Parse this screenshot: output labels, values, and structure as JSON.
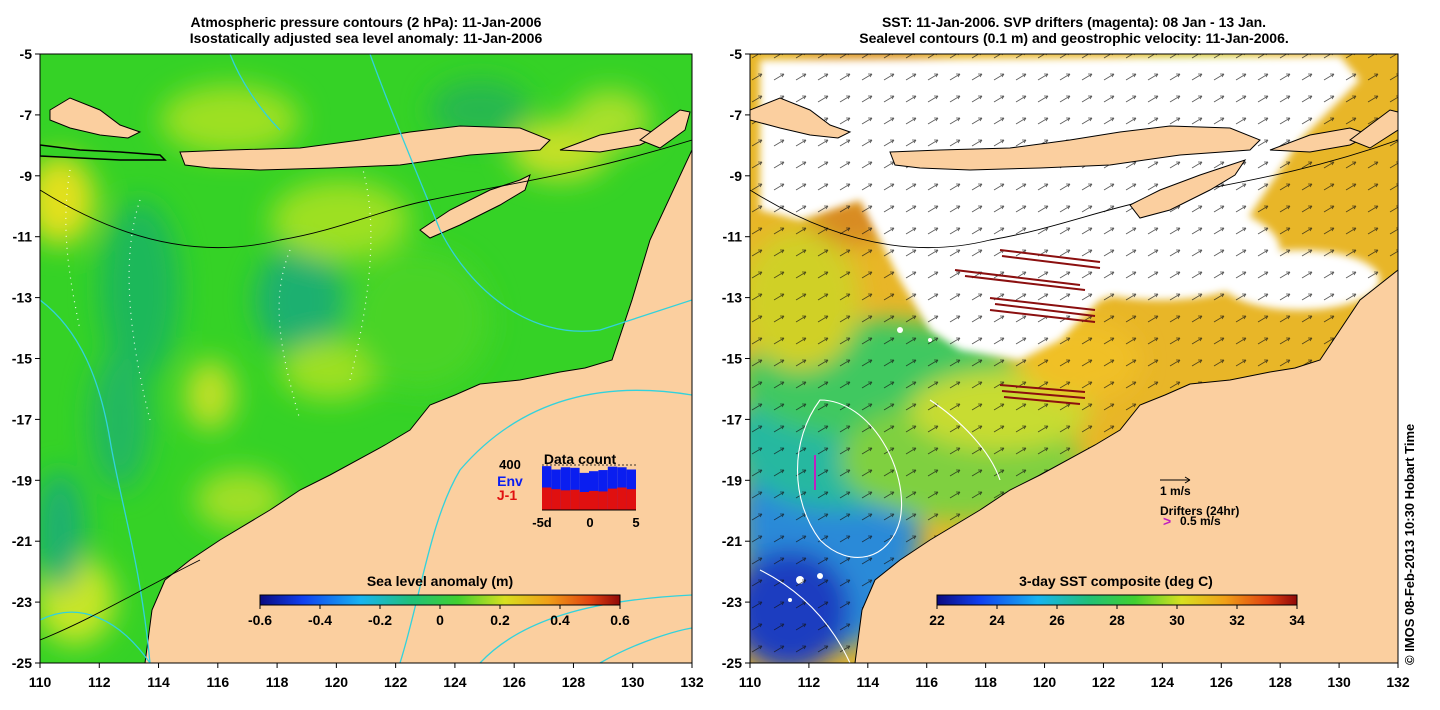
{
  "left_panel": {
    "title_line1": "Atmospheric pressure contours (2 hPa): 11-Jan-2006",
    "title_line2": "Isostatically adjusted sea level anomaly: 11-Jan-2006",
    "lat_labels": [
      "-5",
      "-7",
      "-9",
      "-11",
      "-13",
      "-15",
      "-17",
      "-19",
      "-21",
      "-23",
      "-25"
    ],
    "lon_labels": [
      "110",
      "112",
      "114",
      "116",
      "118",
      "120",
      "122",
      "124",
      "126",
      "128",
      "130",
      "132"
    ],
    "colorbar": {
      "title": "Sea level anomaly (m)",
      "ticks": [
        "-0.6",
        "-0.4",
        "-0.2",
        "0",
        "0.2",
        "0.4",
        "0.6"
      ],
      "range": [
        -0.6,
        0.6
      ]
    },
    "data_count_inset": {
      "title": "Data count",
      "max_label": "400",
      "legend_env": "Env",
      "legend_j1": "J-1",
      "x_labels": [
        "-5d",
        "0",
        "5"
      ],
      "env_colour": "#0a1ef0",
      "j1_colour": "#e01010",
      "env_counts": [
        390,
        360,
        380,
        375,
        330,
        345,
        355,
        385,
        380,
        360
      ],
      "j1_counts": [
        200,
        185,
        175,
        180,
        160,
        170,
        165,
        190,
        200,
        185
      ]
    }
  },
  "right_panel": {
    "title_line1": "SST: 11-Jan-2006. SVP drifters (magenta): 08 Jan - 13 Jan.",
    "title_line2": "Sealevel contours (0.1 m) and geostrophic velocity: 11-Jan-2006.",
    "lat_labels": [
      "-5",
      "-7",
      "-9",
      "-11",
      "-13",
      "-15",
      "-17",
      "-19",
      "-21",
      "-23",
      "-25"
    ],
    "lon_labels": [
      "110",
      "112",
      "114",
      "116",
      "118",
      "120",
      "122",
      "124",
      "126",
      "128",
      "130",
      "132"
    ],
    "colorbar": {
      "title": "3-day SST composite (deg C)",
      "ticks": [
        "22",
        "24",
        "26",
        "28",
        "30",
        "32",
        "34"
      ],
      "range": [
        22,
        34
      ]
    },
    "velocity_scale_label": "1 m/s",
    "drifters_label": "Drifters (24hr)",
    "drifter_scale_glyph": ">",
    "drifter_scale_label": "0.5 m/s"
  },
  "copyright": "© IMOS 08-Feb-2013 10:30 Hobart Time",
  "colors": {
    "land": "#fbcf9f",
    "sla_base": "#35d226",
    "sst_warm": "#f2ae22",
    "cloud": "#ffffff",
    "contour_cyan": "#32d2dc",
    "drifter_track": "#8b0f0f"
  }
}
